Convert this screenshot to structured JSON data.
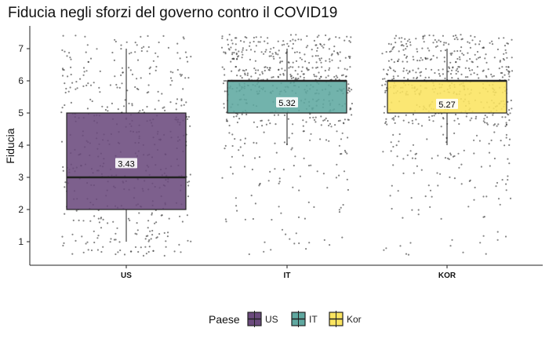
{
  "chart_data": {
    "type": "boxplot",
    "title": "Fiducia negli sforzi del governo contro il COVID19",
    "xlabel": "",
    "ylabel": "Fiducia",
    "ylim": [
      0.5,
      7.7
    ],
    "yticks": [
      1,
      2,
      3,
      4,
      5,
      6,
      7
    ],
    "categories": [
      "US",
      "IT",
      "KOR"
    ],
    "grid": false,
    "legend": {
      "title": "Paese",
      "position": "bottom",
      "entries": [
        {
          "label": "US",
          "color": "#6b4a7d"
        },
        {
          "label": "IT",
          "color": "#5fa8a0"
        },
        {
          "label": "Kor",
          "color": "#fbe460"
        }
      ]
    },
    "boxes": [
      {
        "category": "US",
        "color": "#6b4a7d",
        "whisker_low": 1,
        "q1": 2,
        "median": 3,
        "q3": 5,
        "whisker_high": 7,
        "mean": 3.43,
        "mean_label": "3.43"
      },
      {
        "category": "IT",
        "color": "#5fa8a0",
        "whisker_low": 4,
        "q1": 5,
        "median": 6,
        "q3": 6,
        "whisker_high": 7,
        "mean": 5.32,
        "mean_label": "5.32"
      },
      {
        "category": "KOR",
        "color": "#fbe460",
        "whisker_low": 4,
        "q1": 5,
        "median": 6,
        "q3": 6,
        "whisker_high": 7,
        "mean": 5.27,
        "mean_label": "5.27"
      }
    ],
    "point_distribution": [
      {
        "category": "US",
        "counts": {
          "1": 70,
          "2": 60,
          "3": 90,
          "4": 70,
          "5": 80,
          "6": 70,
          "7": 50
        }
      },
      {
        "category": "IT",
        "counts": {
          "1": 15,
          "2": 20,
          "3": 30,
          "4": 45,
          "5": 120,
          "6": 220,
          "7": 160
        }
      },
      {
        "category": "KOR",
        "counts": {
          "1": 15,
          "2": 20,
          "3": 30,
          "4": 50,
          "5": 130,
          "6": 220,
          "7": 150
        }
      }
    ]
  }
}
